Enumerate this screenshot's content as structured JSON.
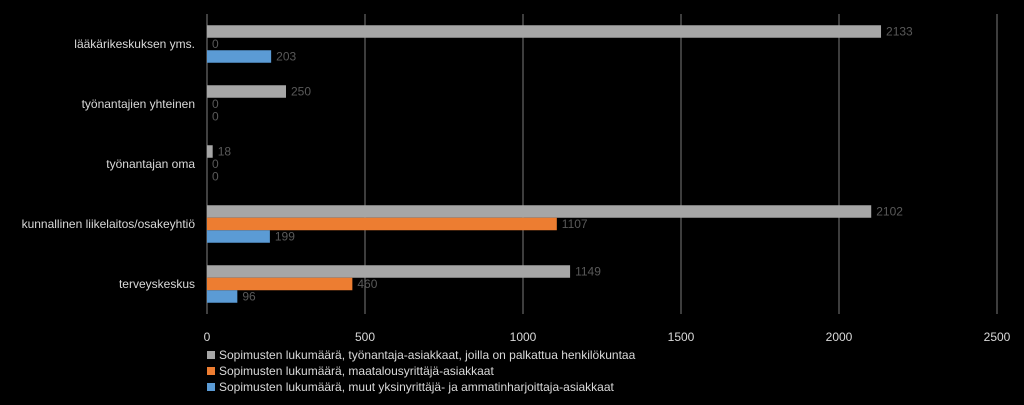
{
  "chart_data": {
    "type": "bar",
    "orientation": "horizontal",
    "categories": [
      "terveyskeskus",
      "kunnallinen liikelaitos/osakeyhtiö",
      "työnantajan oma",
      "työnantajien yhteinen",
      "lääkärikeskuksen yms."
    ],
    "series": [
      {
        "name": "Sopimusten lukumäärä, työnantaja-asiakkaat, joilla on palkattua henkilökuntaa",
        "color": "#a6a6a6",
        "values": [
          1149,
          2102,
          18,
          250,
          2133
        ],
        "labels": [
          "1149",
          "2102",
          "18",
          "250",
          "2133"
        ]
      },
      {
        "name": "Sopimusten lukumäärä, maatalousyrittäjä-asiakkaat",
        "color": "#ed7d31",
        "values": [
          460,
          1107,
          0,
          0,
          0
        ],
        "labels": [
          "460",
          "1107",
          "0",
          "0",
          "0"
        ]
      },
      {
        "name": "Sopimusten lukumäärä, muut yksinyrittäjä- ja ammatinharjoittaja-asiakkaat",
        "color": "#5b9bd5",
        "values": [
          96,
          199,
          0,
          0,
          203
        ],
        "labels": [
          "96",
          "199",
          "0",
          "0",
          "203"
        ]
      }
    ],
    "xlim": [
      0,
      2500
    ],
    "ticks": [
      0,
      500,
      1000,
      1500,
      2000,
      2500
    ],
    "tick_labels": [
      "0",
      "500",
      "1000",
      "1500",
      "2000",
      "2500"
    ],
    "grid": true,
    "legend_position": "bottom",
    "title": "",
    "xlabel": "",
    "ylabel": ""
  }
}
